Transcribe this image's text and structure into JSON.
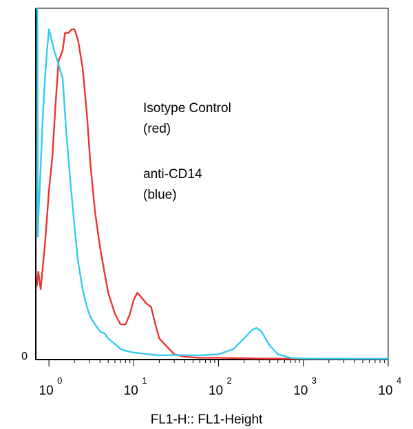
{
  "chart_data": {
    "type": "line",
    "title": "",
    "xlabel": "FL1-H:: FL1-Height",
    "ylabel": "",
    "x_scale": "log",
    "xlim": [
      0.7,
      10000
    ],
    "ylim": [
      0,
      100
    ],
    "y_tick_labels": [
      {
        "value": 0,
        "label": "0"
      }
    ],
    "x_tick_labels": [
      {
        "value": 1,
        "base": "10",
        "exp": "0"
      },
      {
        "value": 10,
        "base": "10",
        "exp": "1"
      },
      {
        "value": 100,
        "base": "10",
        "exp": "2"
      },
      {
        "value": 1000,
        "base": "10",
        "exp": "3"
      },
      {
        "value": 10000,
        "base": "10",
        "exp": "4"
      }
    ],
    "annotations": [
      {
        "lines": [
          "Isotype Control",
          "(red)"
        ]
      },
      {
        "lines": [
          "anti-CD14",
          "(blue)"
        ]
      }
    ],
    "series": [
      {
        "color": "#ee3333",
        "x": [
          0.72,
          0.75,
          0.8,
          0.9,
          1.0,
          1.1,
          1.2,
          1.3,
          1.45,
          1.55,
          1.7,
          1.85,
          2.0,
          2.2,
          2.5,
          2.8,
          3.1,
          3.5,
          4.0,
          4.5,
          5.0,
          6.0,
          7.0,
          8.0,
          9.0,
          10.0,
          11.0,
          12.0,
          13.0,
          14.0,
          16.0,
          18.0,
          20.0,
          25.0,
          30.0,
          40.0,
          60.0,
          100.0,
          300.0,
          1000.0,
          10000.0
        ],
        "y": [
          21,
          25,
          20,
          33,
          48,
          58,
          73,
          85,
          88,
          93,
          93,
          94,
          94,
          91,
          83,
          70,
          55,
          42,
          32,
          25,
          19,
          13,
          10,
          10,
          13,
          17,
          19,
          18,
          17,
          16,
          15,
          10,
          6,
          3.5,
          1.5,
          0.8,
          0.5,
          0.5,
          0.3,
          0.2,
          0.2
        ]
      },
      {
        "color": "#33ccee",
        "x": [
          0.72,
          0.73,
          0.74,
          0.75,
          0.8,
          0.85,
          0.9,
          0.95,
          1.0,
          1.05,
          1.15,
          1.3,
          1.45,
          1.6,
          1.8,
          2.0,
          2.2,
          2.5,
          2.8,
          3.1,
          3.5,
          4.0,
          4.5,
          5.0,
          5.6,
          6.3,
          7.0,
          8.0,
          10.0,
          15.0,
          20.0,
          30.0,
          60.0,
          100.0,
          150.0,
          200.0,
          250.0,
          280.0,
          320.0,
          400.0,
          500.0,
          700.0,
          1000.0,
          10000.0
        ],
        "y": [
          100,
          99,
          35,
          40,
          55,
          70,
          80,
          88,
          94,
          92,
          88,
          84,
          80,
          65,
          50,
          38,
          28,
          20,
          15,
          12,
          10,
          8,
          7.5,
          6,
          5,
          4,
          3,
          2.5,
          2,
          1.5,
          1.2,
          1.3,
          1.2,
          1.5,
          3,
          6,
          8.5,
          9,
          8,
          4,
          1.5,
          0.5,
          0.3,
          0.2
        ]
      }
    ],
    "legend": "none",
    "grid": false
  }
}
